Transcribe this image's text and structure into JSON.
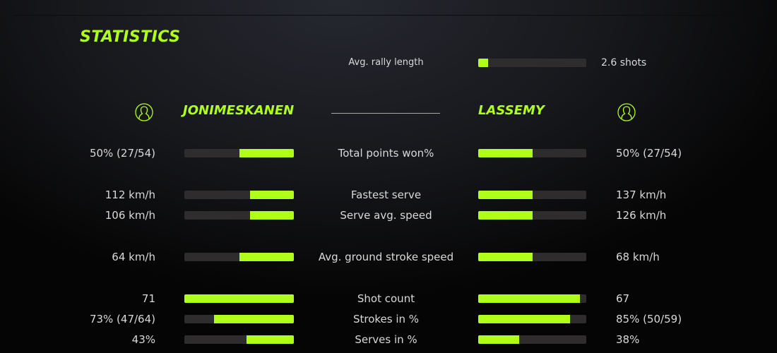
{
  "title": "STATISTICS",
  "colors": {
    "accent": "#b0ff1a",
    "track": "#2e2c2d"
  },
  "rally": {
    "label": "Avg. rally length",
    "value": "2.6 shots",
    "fill": 0.09
  },
  "players": {
    "left": {
      "name": "JONIMESKANEN",
      "icon": "user-circle-icon"
    },
    "right": {
      "name": "LASSEMY",
      "icon": "user-circle-icon"
    }
  },
  "stats": [
    {
      "label": "Total points won%",
      "left": "50% (27/54)",
      "right": "50% (27/54)",
      "left_fill": 0.5,
      "right_fill": 0.5
    },
    {
      "label": "Fastest serve",
      "left": "112 km/h",
      "right": "137 km/h",
      "left_fill": 0.4,
      "right_fill": 0.5
    },
    {
      "label": "Serve avg. speed",
      "left": "106 km/h",
      "right": "126 km/h",
      "left_fill": 0.4,
      "right_fill": 0.5
    },
    {
      "label": "Avg. ground stroke speed",
      "left": "64 km/h",
      "right": "68 km/h",
      "left_fill": 0.5,
      "right_fill": 0.5
    },
    {
      "label": "Shot count",
      "left": "71",
      "right": "67",
      "left_fill": 1.0,
      "right_fill": 0.94
    },
    {
      "label": "Strokes in %",
      "left": "73% (47/64)",
      "right": "85% (50/59)",
      "left_fill": 0.73,
      "right_fill": 0.85
    },
    {
      "label": "Serves in %",
      "left": "43%",
      "right": "38%",
      "left_fill": 0.43,
      "right_fill": 0.38
    }
  ]
}
